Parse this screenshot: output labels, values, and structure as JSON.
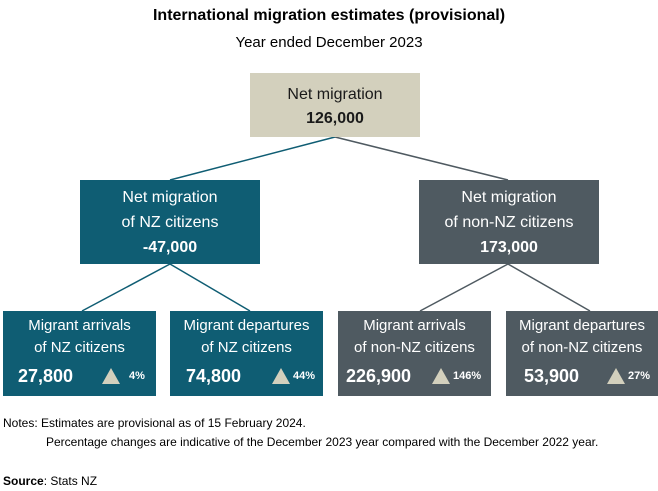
{
  "title": "International migration estimates (provisional)",
  "subtitle": "Year ended December 2023",
  "top": {
    "label": "Net migration",
    "value": "126,000"
  },
  "nz": {
    "label_line1": "Net migration",
    "label_line2": "of NZ citizens",
    "value": "-47,000"
  },
  "non_nz": {
    "label_line1": "Net migration",
    "label_line2": "of non-NZ citizens",
    "value": "173,000"
  },
  "nz_arrivals": {
    "label_line1": "Migrant arrivals",
    "label_line2": "of NZ citizens",
    "value": "27,800",
    "change": "4%",
    "change_direction": "up"
  },
  "nz_departures": {
    "label_line1": "Migrant departures",
    "label_line2": "of NZ citizens",
    "value": "74,800",
    "change": "44%",
    "change_direction": "up"
  },
  "non_nz_arrivals": {
    "label_line1": "Migrant arrivals",
    "label_line2": "of non-NZ citizens",
    "value": "226,900",
    "change": "146%",
    "change_direction": "up"
  },
  "non_nz_departures": {
    "label_line1": "Migrant departures",
    "label_line2": "of non-NZ citizens",
    "value": "53,900",
    "change": "27%",
    "change_direction": "up"
  },
  "notes": {
    "line1": "Notes: Estimates are provisional as of 15 February 2024.",
    "line2": "Percentage changes are indicative of the December 2023 year compared with the December 2022 year."
  },
  "source": {
    "label": "Source",
    "text": ": Stats NZ"
  },
  "colors": {
    "nz": "#0f5d73",
    "non_nz": "#4f5a61",
    "top": "#d3d0bd",
    "triangle": "#d3d0bd"
  }
}
